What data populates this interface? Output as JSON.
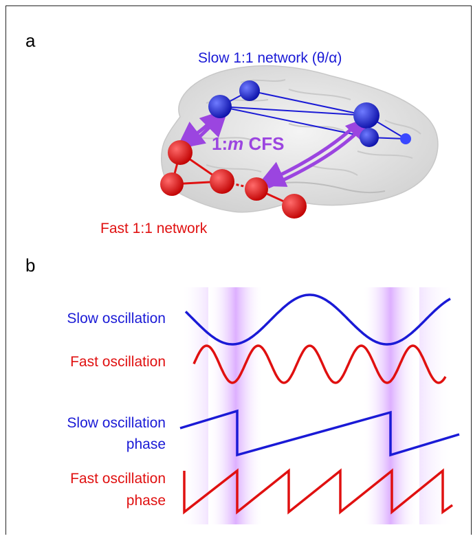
{
  "panel_a": {
    "label": "a",
    "slow_network_label": "Slow 1:1 network (θ/α)",
    "cfs_label_prefix": "1:",
    "cfs_label_m": "m",
    "cfs_label_suffix": " CFS",
    "fast_network_label": "Fast 1:1 network"
  },
  "panel_b": {
    "label": "b",
    "slow_oscillation_label": "Slow oscillation",
    "fast_oscillation_label": "Fast oscillation",
    "slow_phase_label_line1": "Slow oscillation",
    "slow_phase_label_line2": "phase",
    "fast_phase_label_line1": "Fast oscillation",
    "fast_phase_label_line2": "phase"
  },
  "colors": {
    "slow": "#1a1ad6",
    "fast": "#e01010",
    "cfs": "#9b45e0",
    "brain": "#e6e6e6",
    "highlight": "#d9a6ff"
  }
}
